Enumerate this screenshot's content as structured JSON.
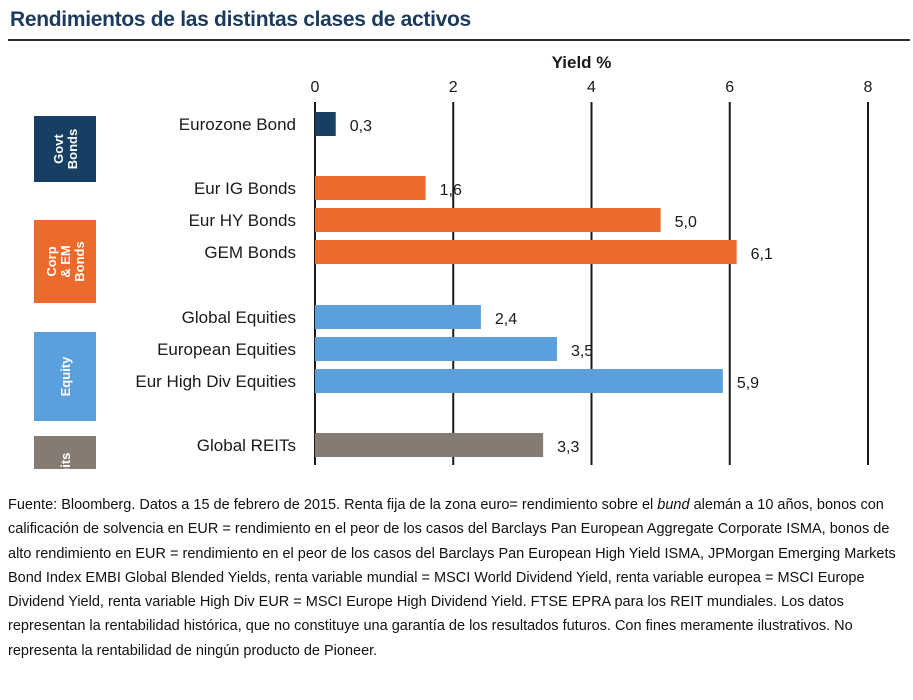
{
  "title": "Rendimientos de las distintas clases de activos",
  "colors": {
    "govt": "#163f63",
    "corp": "#ec6a2b",
    "equity": "#5aa0dc",
    "reits": "#857b72",
    "grid": "#1a1a1a",
    "title": "#1b3a5c"
  },
  "chart_data": {
    "type": "bar",
    "orientation": "horizontal",
    "xlabel": "Yield %",
    "xlim": [
      0,
      8
    ],
    "xticks": [
      "0",
      "2",
      "4",
      "6",
      "8"
    ],
    "grid": true,
    "groups": [
      {
        "label": "Govt Bonds",
        "color_key": "govt",
        "categories": [
          "Eurozone Bond"
        ],
        "values": [
          0.3
        ],
        "value_labels": [
          "0,3"
        ]
      },
      {
        "label": "Corp & EM Bonds",
        "color_key": "corp",
        "categories": [
          "Eur IG Bonds",
          "Eur HY Bonds",
          "GEM Bonds"
        ],
        "values": [
          1.6,
          5.0,
          6.1
        ],
        "value_labels": [
          "1,6",
          "5,0",
          "6,1"
        ]
      },
      {
        "label": "Equity",
        "color_key": "equity",
        "categories": [
          "Global Equities",
          "European Equities",
          "Eur High Div Equities"
        ],
        "values": [
          2.4,
          3.5,
          5.9
        ],
        "value_labels": [
          "2,4",
          "3,5",
          "5,9"
        ]
      },
      {
        "label": "Reits",
        "color_key": "reits",
        "categories": [
          "Global REITs"
        ],
        "values": [
          3.3
        ],
        "value_labels": [
          "3,3"
        ]
      }
    ]
  },
  "footnote": {
    "before": "Fuente: Bloomberg. Datos a 15 de febrero de 2015. Renta fija de la zona euro= rendimiento sobre el ",
    "italic": "bund",
    "after": " alemán a 10 años, bonos con calificación de solvencia en EUR = rendimiento en el peor de los casos del  Barclays Pan European Aggregate Corporate ISMA, bonos de alto rendimiento en EUR = rendimiento en el peor de los casos del  Barclays Pan European High Yield ISMA, JPMorgan Emerging Markets Bond Index EMBI Global Blended Yields, renta variable mundial = MSCI World Dividend Yield, renta variable europea = MSCI Europe Dividend Yield, renta variable High Div EUR = MSCI Europe High Dividend Yield. FTSE EPRA para los REIT mundiales. Los datos representan la rentabilidad histórica, que no constituye una garantía de los resultados futuros. Con fines meramente ilustrativos. No representa la rentabilidad de ningún producto de Pioneer."
  }
}
